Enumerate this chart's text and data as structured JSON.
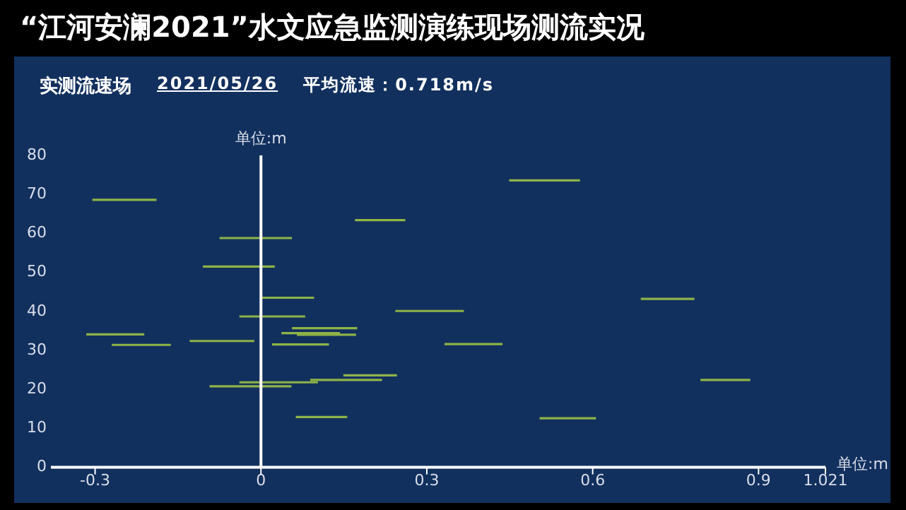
{
  "chart_data": {
    "type": "line",
    "title": "“江河安澜2021”水文应急监测演练现场测流实况",
    "subtitle": "实测流速场",
    "annotations": [
      "2021/05/26",
      "平均流速：0.718m/s"
    ],
    "xlabel": "单位:m",
    "ylabel": "单位:m",
    "xlim": [
      -0.38,
      1.021
    ],
    "xticks": [
      -0.3,
      0,
      0.3,
      0.6,
      0.9,
      1.021
    ],
    "ylim": [
      0,
      80
    ],
    "yticks": [
      0,
      10,
      20,
      30,
      40,
      50,
      60,
      70,
      80
    ],
    "ref_lines": [
      {
        "axis": "x",
        "value": 0,
        "color": "#ffffff"
      }
    ],
    "legend": false,
    "marker": "none",
    "line_style": "solid",
    "series": [
      {
        "color": "#8fb347",
        "x": [
          -0.305,
          -0.189
        ],
        "values": [
          68.6,
          68.6
        ]
      },
      {
        "color": "#8fb347",
        "x": [
          0.17,
          0.261
        ],
        "values": [
          63.4,
          63.4
        ]
      },
      {
        "color": "#8fb347",
        "x": [
          -0.075,
          0.056
        ],
        "values": [
          58.8,
          58.8
        ]
      },
      {
        "color": "#8fb347",
        "x": [
          -0.105,
          0.025
        ],
        "values": [
          51.5,
          51.5
        ]
      },
      {
        "color": "#8fb347",
        "x": [
          0.0,
          0.096
        ],
        "values": [
          43.5,
          43.5
        ]
      },
      {
        "color": "#8fb347",
        "x": [
          -0.039,
          0.08
        ],
        "values": [
          38.7,
          38.7
        ]
      },
      {
        "color": "#8fb347",
        "x": [
          0.243,
          0.367
        ],
        "values": [
          40.1,
          40.1
        ]
      },
      {
        "color": "#8fb347",
        "x": [
          0.449,
          0.577
        ],
        "values": [
          73.6,
          73.6
        ]
      },
      {
        "color": "#8fb347",
        "x": [
          0.687,
          0.784
        ],
        "values": [
          43.2,
          43.2
        ]
      },
      {
        "color": "#8fb347",
        "x": [
          0.056,
          0.174
        ],
        "values": [
          35.7,
          35.7
        ]
      },
      {
        "color": "#8fb347",
        "x": [
          -0.316,
          -0.211
        ],
        "values": [
          34.1,
          34.1
        ]
      },
      {
        "color": "#8fb347",
        "x": [
          0.037,
          0.143
        ],
        "values": [
          34.4,
          34.4
        ]
      },
      {
        "color": "#8fb347",
        "x": [
          0.065,
          0.172
        ],
        "values": [
          34.0,
          34.0
        ]
      },
      {
        "color": "#8fb347",
        "x": [
          -0.129,
          -0.012
        ],
        "values": [
          32.4,
          32.4
        ]
      },
      {
        "color": "#8fb347",
        "x": [
          -0.27,
          -0.163
        ],
        "values": [
          31.4,
          31.4
        ]
      },
      {
        "color": "#8fb347",
        "x": [
          0.02,
          0.123
        ],
        "values": [
          31.5,
          31.5
        ]
      },
      {
        "color": "#8fb347",
        "x": [
          0.149,
          0.246
        ],
        "values": [
          23.6,
          23.6
        ]
      },
      {
        "color": "#8fb347",
        "x": [
          0.089,
          0.219
        ],
        "values": [
          22.4,
          22.4
        ]
      },
      {
        "color": "#8fb347",
        "x": [
          -0.039,
          0.103
        ],
        "values": [
          21.8,
          21.8
        ]
      },
      {
        "color": "#8fb347",
        "x": [
          -0.093,
          0.055
        ],
        "values": [
          20.8,
          20.8
        ]
      },
      {
        "color": "#8fb347",
        "x": [
          0.063,
          0.156
        ],
        "values": [
          12.9,
          12.9
        ]
      },
      {
        "color": "#8fb347",
        "x": [
          0.332,
          0.437
        ],
        "values": [
          31.6,
          31.6
        ]
      },
      {
        "color": "#8fb347",
        "x": [
          0.795,
          0.885
        ],
        "values": [
          22.4,
          22.4
        ]
      },
      {
        "color": "#8fb347",
        "x": [
          0.504,
          0.606
        ],
        "values": [
          12.6,
          12.6
        ]
      }
    ]
  }
}
